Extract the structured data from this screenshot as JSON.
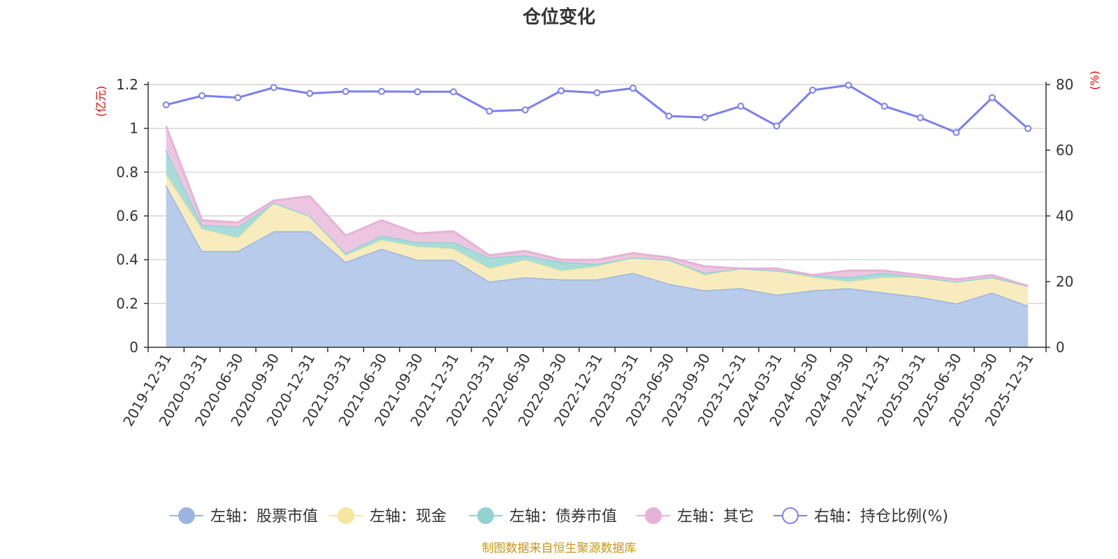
{
  "chart_data": {
    "type": "area",
    "title": "仓位变化",
    "source_note": "制图数据来自恒生聚源数据库",
    "categories": [
      "2019-12-31",
      "2020-03-31",
      "2020-06-30",
      "2020-09-30",
      "2020-12-31",
      "2021-03-31",
      "2021-06-30",
      "2021-09-30",
      "2021-12-31",
      "2022-03-31",
      "2022-06-30",
      "2022-09-30",
      "2022-12-31",
      "2023-03-31",
      "2023-06-30",
      "2023-09-30",
      "2023-12-31",
      "2024-03-31",
      "2024-06-30",
      "2024-09-30",
      "2024-12-31",
      "2025-03-31",
      "2025-06-30",
      "2025-09-30",
      "2025-12-31"
    ],
    "left_axis": {
      "unit": "(亿元)",
      "ylim": [
        0,
        1.2
      ],
      "ticks": [
        "0",
        "0.2",
        "0.4",
        "0.6",
        "0.8",
        "1",
        "1.2"
      ]
    },
    "right_axis": {
      "unit": "(%)",
      "ylim": [
        0,
        80
      ],
      "ticks": [
        "0",
        "20",
        "40",
        "60",
        "80"
      ]
    },
    "series": [
      {
        "name": "左轴：股票市值",
        "axis": "left",
        "stack": true,
        "color": "#9bb5e0",
        "fill": "#b8cbeb",
        "values": [
          0.74,
          0.44,
          0.44,
          0.53,
          0.53,
          0.39,
          0.45,
          0.4,
          0.4,
          0.3,
          0.32,
          0.31,
          0.31,
          0.34,
          0.29,
          0.26,
          0.27,
          0.24,
          0.26,
          0.27,
          0.25,
          0.23,
          0.2,
          0.25,
          0.19
        ]
      },
      {
        "name": "左轴：现金",
        "axis": "left",
        "stack": true,
        "color": "#f5e6a0",
        "fill": "#f8ecbf",
        "values": [
          0.05,
          0.1,
          0.06,
          0.13,
          0.07,
          0.03,
          0.04,
          0.06,
          0.05,
          0.06,
          0.08,
          0.04,
          0.06,
          0.07,
          0.11,
          0.07,
          0.09,
          0.11,
          0.06,
          0.03,
          0.07,
          0.09,
          0.1,
          0.07,
          0.09
        ]
      },
      {
        "name": "左轴：债券市值",
        "axis": "left",
        "stack": true,
        "color": "#93d1d3",
        "fill": "#a8dcd9",
        "values": [
          0.11,
          0.02,
          0.05,
          0.0,
          0.0,
          0.01,
          0.02,
          0.02,
          0.03,
          0.05,
          0.02,
          0.04,
          0.01,
          0.0,
          0.0,
          0.01,
          0.0,
          0.0,
          0.01,
          0.02,
          0.02,
          0.0,
          0.0,
          0.0,
          0.0
        ]
      },
      {
        "name": "左轴：其它",
        "axis": "left",
        "stack": true,
        "color": "#e6b2d6",
        "fill": "#ecc6e0",
        "values": [
          0.11,
          0.02,
          0.02,
          0.01,
          0.09,
          0.08,
          0.07,
          0.04,
          0.05,
          0.01,
          0.02,
          0.01,
          0.02,
          0.02,
          0.01,
          0.03,
          0.0,
          0.01,
          0.0,
          0.03,
          0.01,
          0.01,
          0.01,
          0.01,
          0.0
        ]
      },
      {
        "name": "右轴：持仓比例(%)",
        "axis": "right",
        "stack": false,
        "color": "#7b7ff0",
        "values": [
          73.8,
          76.6,
          76.0,
          79.1,
          77.3,
          77.9,
          77.9,
          77.8,
          77.8,
          71.9,
          72.3,
          78.1,
          77.5,
          78.9,
          70.4,
          70.0,
          73.4,
          67.4,
          78.3,
          79.8,
          73.4,
          69.9,
          65.4,
          76.0,
          66.6
        ]
      }
    ]
  }
}
